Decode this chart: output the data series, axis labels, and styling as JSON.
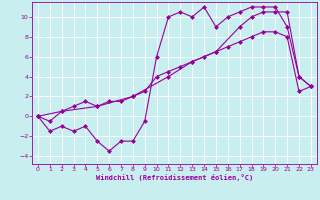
{
  "xlabel": "Windchill (Refroidissement éolien,°C)",
  "bg_color": "#c8eef0",
  "line_color": "#990099",
  "marker": "D",
  "markersize": 2.0,
  "linewidth": 0.8,
  "grid_color": "#ffffff",
  "xlim": [
    -0.5,
    23.5
  ],
  "ylim": [
    -4.8,
    11.5
  ],
  "xticks": [
    0,
    1,
    2,
    3,
    4,
    5,
    6,
    7,
    8,
    9,
    10,
    11,
    12,
    13,
    14,
    15,
    16,
    17,
    18,
    19,
    20,
    21,
    22,
    23
  ],
  "yticks": [
    -4,
    -2,
    0,
    2,
    4,
    6,
    8,
    10
  ],
  "series": [
    [
      0,
      0,
      1,
      -1.5,
      2,
      -1.0,
      3,
      -1.5,
      4,
      -1.0,
      5,
      -2.5,
      6,
      -3.5,
      7,
      -2.5,
      8,
      -2.5,
      9,
      -0.5,
      10,
      6.0,
      11,
      10.0,
      12,
      10.5,
      13,
      10.0,
      14,
      11.0,
      15,
      9.0,
      16,
      10.0,
      17,
      10.5,
      18,
      11.0,
      19,
      11.0,
      20,
      11.0,
      21,
      9.0,
      22,
      4.0,
      23,
      3.0
    ],
    [
      0,
      0,
      1,
      -0.5,
      2,
      0.5,
      3,
      1.0,
      4,
      1.5,
      5,
      1.0,
      6,
      1.5,
      7,
      1.5,
      8,
      2.0,
      9,
      2.5,
      10,
      4.0,
      11,
      4.5,
      12,
      5.0,
      13,
      5.5,
      14,
      6.0,
      15,
      6.5,
      16,
      7.0,
      17,
      7.5,
      18,
      8.0,
      19,
      8.5,
      20,
      8.5,
      21,
      8.0,
      22,
      2.5,
      23,
      3.0
    ],
    [
      0,
      0,
      2,
      0.5,
      5,
      1.0,
      8,
      2.0,
      11,
      4.0,
      13,
      5.5,
      15,
      6.5,
      17,
      9.0,
      18,
      10.0,
      19,
      10.5,
      20,
      10.5,
      21,
      10.5,
      22,
      4.0,
      23,
      3.0
    ]
  ]
}
